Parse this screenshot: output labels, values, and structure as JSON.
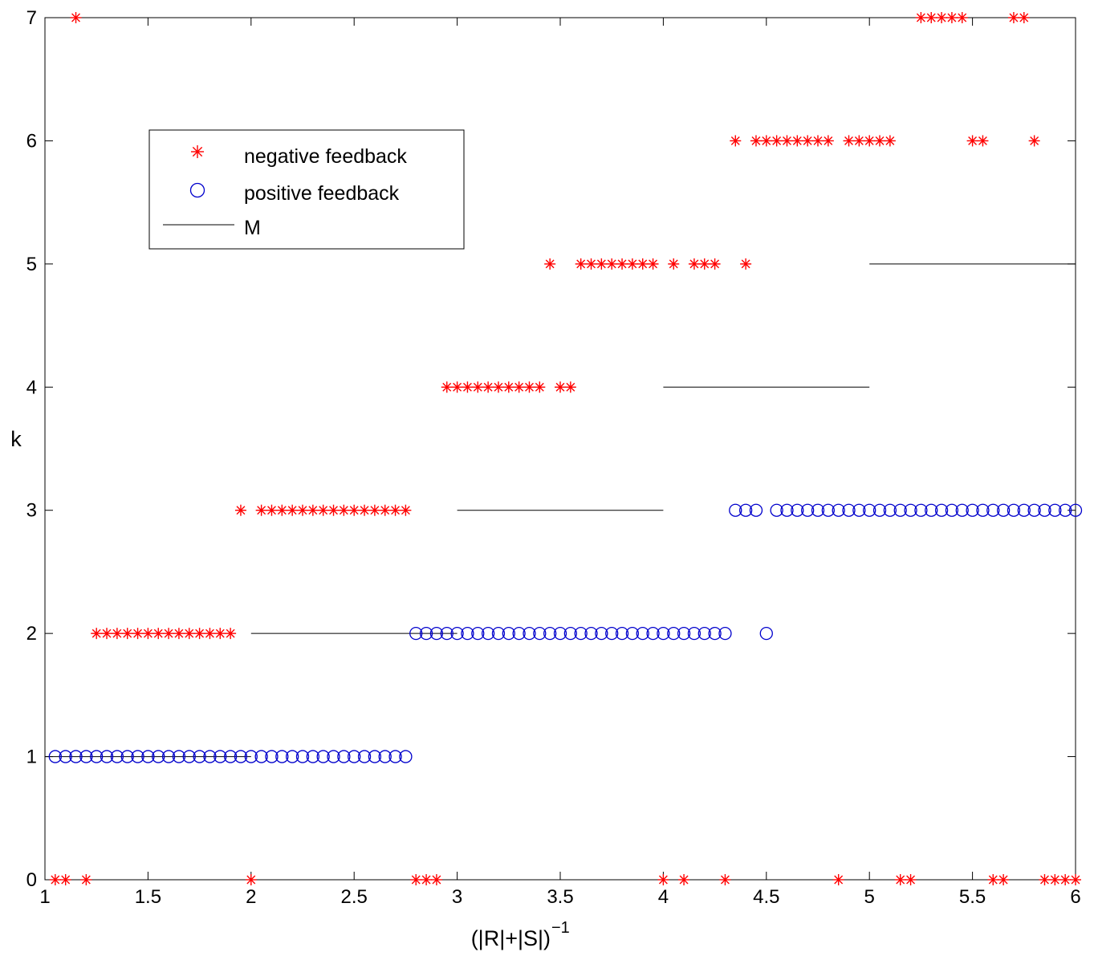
{
  "chart_data": {
    "type": "scatter",
    "xlabel": "(|R|+|S|)",
    "xlabel_superscript": "−1",
    "ylabel": "k",
    "xlim": [
      1,
      6
    ],
    "ylim": [
      0,
      7
    ],
    "xticks": [
      "1",
      "1.5",
      "2",
      "2.5",
      "3",
      "3.5",
      "4",
      "4.5",
      "5",
      "5.5",
      "6"
    ],
    "yticks": [
      "0",
      "1",
      "2",
      "3",
      "4",
      "5",
      "6",
      "7"
    ],
    "grid": false,
    "legend_position": "upper-left",
    "series": [
      {
        "name": "negative feedback",
        "marker": "asterisk",
        "color": "#ff0000",
        "points": [
          [
            1.05,
            0
          ],
          [
            1.1,
            0
          ],
          [
            1.2,
            0
          ],
          [
            2.0,
            0
          ],
          [
            2.8,
            0
          ],
          [
            2.85,
            0
          ],
          [
            2.9,
            0
          ],
          [
            4.0,
            0
          ],
          [
            4.1,
            0
          ],
          [
            4.3,
            0
          ],
          [
            4.85,
            0
          ],
          [
            5.15,
            0
          ],
          [
            5.2,
            0
          ],
          [
            5.6,
            0
          ],
          [
            5.65,
            0
          ],
          [
            5.85,
            0
          ],
          [
            5.9,
            0
          ],
          [
            5.95,
            0
          ],
          [
            6.0,
            0
          ],
          [
            1.15,
            7
          ],
          [
            1.25,
            2
          ],
          [
            1.3,
            2
          ],
          [
            1.35,
            2
          ],
          [
            1.4,
            2
          ],
          [
            1.45,
            2
          ],
          [
            1.5,
            2
          ],
          [
            1.55,
            2
          ],
          [
            1.6,
            2
          ],
          [
            1.65,
            2
          ],
          [
            1.7,
            2
          ],
          [
            1.75,
            2
          ],
          [
            1.8,
            2
          ],
          [
            1.85,
            2
          ],
          [
            1.9,
            2
          ],
          [
            1.95,
            3
          ],
          [
            2.05,
            3
          ],
          [
            2.1,
            3
          ],
          [
            2.15,
            3
          ],
          [
            2.2,
            3
          ],
          [
            2.25,
            3
          ],
          [
            2.3,
            3
          ],
          [
            2.35,
            3
          ],
          [
            2.4,
            3
          ],
          [
            2.45,
            3
          ],
          [
            2.5,
            3
          ],
          [
            2.55,
            3
          ],
          [
            2.6,
            3
          ],
          [
            2.65,
            3
          ],
          [
            2.7,
            3
          ],
          [
            2.75,
            3
          ],
          [
            2.95,
            4
          ],
          [
            3.0,
            4
          ],
          [
            3.05,
            4
          ],
          [
            3.1,
            4
          ],
          [
            3.15,
            4
          ],
          [
            3.2,
            4
          ],
          [
            3.25,
            4
          ],
          [
            3.3,
            4
          ],
          [
            3.35,
            4
          ],
          [
            3.4,
            4
          ],
          [
            3.5,
            4
          ],
          [
            3.55,
            4
          ],
          [
            3.45,
            5
          ],
          [
            3.6,
            5
          ],
          [
            3.65,
            5
          ],
          [
            3.7,
            5
          ],
          [
            3.75,
            5
          ],
          [
            3.8,
            5
          ],
          [
            3.85,
            5
          ],
          [
            3.9,
            5
          ],
          [
            3.95,
            5
          ],
          [
            4.05,
            5
          ],
          [
            4.15,
            5
          ],
          [
            4.2,
            5
          ],
          [
            4.25,
            5
          ],
          [
            4.4,
            5
          ],
          [
            4.35,
            6
          ],
          [
            4.45,
            6
          ],
          [
            4.5,
            6
          ],
          [
            4.55,
            6
          ],
          [
            4.6,
            6
          ],
          [
            4.65,
            6
          ],
          [
            4.7,
            6
          ],
          [
            4.75,
            6
          ],
          [
            4.8,
            6
          ],
          [
            4.9,
            6
          ],
          [
            4.95,
            6
          ],
          [
            5.0,
            6
          ],
          [
            5.05,
            6
          ],
          [
            5.1,
            6
          ],
          [
            5.5,
            6
          ],
          [
            5.55,
            6
          ],
          [
            5.8,
            6
          ],
          [
            5.25,
            7
          ],
          [
            5.3,
            7
          ],
          [
            5.35,
            7
          ],
          [
            5.4,
            7
          ],
          [
            5.45,
            7
          ],
          [
            5.7,
            7
          ],
          [
            5.75,
            7
          ]
        ]
      },
      {
        "name": "positive feedback",
        "marker": "circle",
        "color": "#0000cc",
        "segments": [
          {
            "y": 1,
            "from": 1.05,
            "to": 2.75,
            "step": 0.05
          },
          {
            "y": 2,
            "from": 2.8,
            "to": 4.3,
            "step": 0.05
          },
          {
            "y": 3,
            "from": 4.35,
            "to": 4.45,
            "step": 0.05
          },
          {
            "y": 3,
            "from": 4.55,
            "to": 6.0,
            "step": 0.05
          }
        ],
        "points": [
          [
            4.5,
            2
          ]
        ]
      },
      {
        "name": "M",
        "marker": "line",
        "color": "#000000",
        "lines": [
          {
            "y": 1,
            "from": 1,
            "to": 2
          },
          {
            "y": 2,
            "from": 2,
            "to": 3
          },
          {
            "y": 3,
            "from": 3,
            "to": 4
          },
          {
            "y": 4,
            "from": 4,
            "to": 5
          },
          {
            "y": 5,
            "from": 5,
            "to": 6
          }
        ]
      }
    ]
  }
}
